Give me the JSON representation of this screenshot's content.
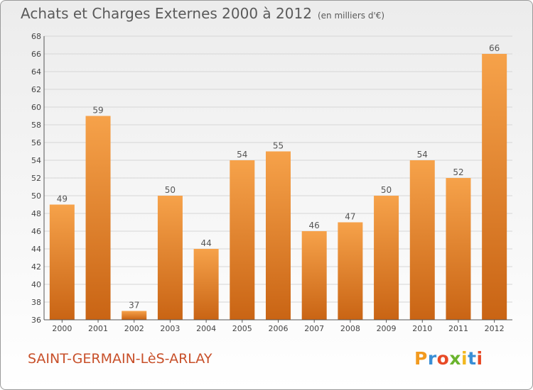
{
  "header": {
    "title": "Achats et Charges Externes 2000 à 2012",
    "unit": "(en milliers d'€)"
  },
  "footer": {
    "commune": "SAINT-GERMAIN-LèS-ARLAY",
    "logo": [
      "P",
      "r",
      "o",
      "x",
      "i",
      "t",
      "i"
    ]
  },
  "colors": {
    "bar_light": "#f6a24a",
    "bar_dark": "#c96414",
    "accent_text": "#c8502a",
    "grid": "#d6d6d6"
  },
  "chart_data": {
    "type": "bar",
    "title": "Achats et Charges Externes 2000 à 2012",
    "subtitle": "(en milliers d'€)",
    "xlabel": "",
    "ylabel": "",
    "ylim": [
      36,
      68
    ],
    "ytick_step": 2,
    "grid": true,
    "categories": [
      "2000",
      "2001",
      "2002",
      "2003",
      "2004",
      "2005",
      "2006",
      "2007",
      "2008",
      "2009",
      "2010",
      "2011",
      "2012"
    ],
    "values": [
      49,
      59,
      37,
      50,
      44,
      54,
      55,
      46,
      47,
      50,
      54,
      52,
      66
    ]
  }
}
